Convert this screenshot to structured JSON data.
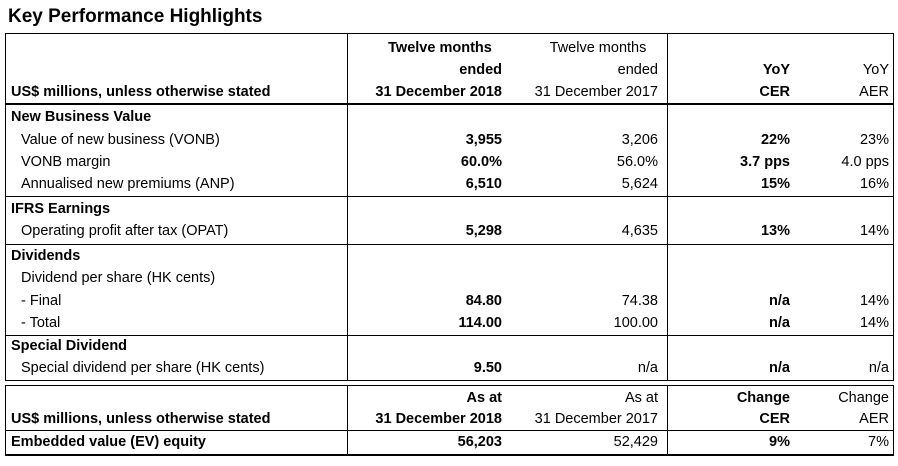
{
  "title": "Key Performance Highlights",
  "header1": {
    "label": "US$ millions, unless otherwise stated",
    "col2017_line1": "Twelve months",
    "col2017_line2": "ended",
    "col2017_line3": "31 December 2017",
    "col2018_line1": "Twelve months",
    "col2018_line2": "ended",
    "col2018_line3": "31 December 2018",
    "cer_line1": "YoY",
    "cer_line2": "CER",
    "aer_line1": "YoY",
    "aer_line2": "AER"
  },
  "sections": {
    "nbv": {
      "heading": "New Business Value",
      "rows": [
        {
          "label": "Value of new business (VONB)",
          "v2018": "3,955",
          "v2017": "3,206",
          "cer": "22%",
          "aer": "23%"
        },
        {
          "label": "VONB margin",
          "v2018": "60.0%",
          "v2017": "56.0%",
          "cer": "3.7 pps",
          "aer": "4.0 pps"
        },
        {
          "label": "Annualised new premiums (ANP)",
          "v2018": "6,510",
          "v2017": "5,624",
          "cer": "15%",
          "aer": "16%"
        }
      ]
    },
    "ifrs": {
      "heading": "IFRS Earnings",
      "rows": [
        {
          "label": "Operating profit after tax (OPAT)",
          "v2018": "5,298",
          "v2017": "4,635",
          "cer": "13%",
          "aer": "14%"
        }
      ]
    },
    "div": {
      "heading": "Dividends",
      "sublabel": "Dividend per share (HK cents)",
      "rows": [
        {
          "label": "- Final",
          "v2018": "84.80",
          "v2017": "74.38",
          "cer": "n/a",
          "aer": "14%"
        },
        {
          "label": "- Total",
          "v2018": "114.00",
          "v2017": "100.00",
          "cer": "n/a",
          "aer": "14%"
        }
      ]
    },
    "special": {
      "heading": "Special Dividend",
      "rows": [
        {
          "label": "Special dividend per share (HK cents)",
          "v2018": "9.50",
          "v2017": "n/a",
          "cer": "n/a",
          "aer": "n/a"
        }
      ]
    }
  },
  "header2": {
    "label": "US$ millions, unless otherwise stated",
    "col2018_line1": "As at",
    "col2018_line2": "31 December 2018",
    "col2017_line1": "As at",
    "col2017_line2": "31 December 2017",
    "cer_line1": "Change",
    "cer_line2": "CER",
    "aer_line1": "Change",
    "aer_line2": "AER"
  },
  "ev": {
    "label": "Embedded value (EV) equity",
    "v2018": "56,203",
    "v2017": "52,429",
    "cer": "9%",
    "aer": "7%"
  }
}
